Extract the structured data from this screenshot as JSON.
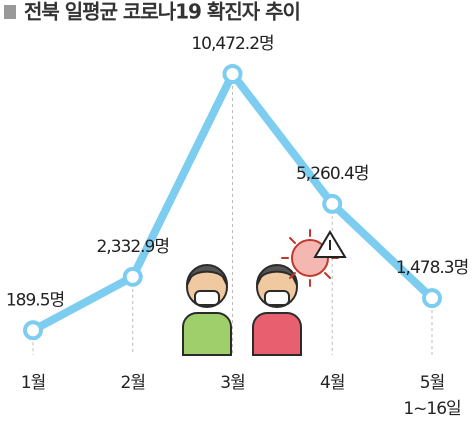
{
  "chart_data": {
    "type": "line",
    "title": "전북 일평균 코로나19 확진자 추이",
    "categories": [
      "1월",
      "2월",
      "3월",
      "4월",
      "5월"
    ],
    "annotation": "1~16일",
    "series": [
      {
        "color": "#7dcdf1",
        "values": [
          189.5,
          2332.9,
          10472.2,
          5260.4,
          1478.3
        ],
        "value_labels": [
          "189.5명",
          "2,332.9명",
          "10,472.2명",
          "5,260.4명",
          "1,478.3명"
        ]
      }
    ]
  }
}
